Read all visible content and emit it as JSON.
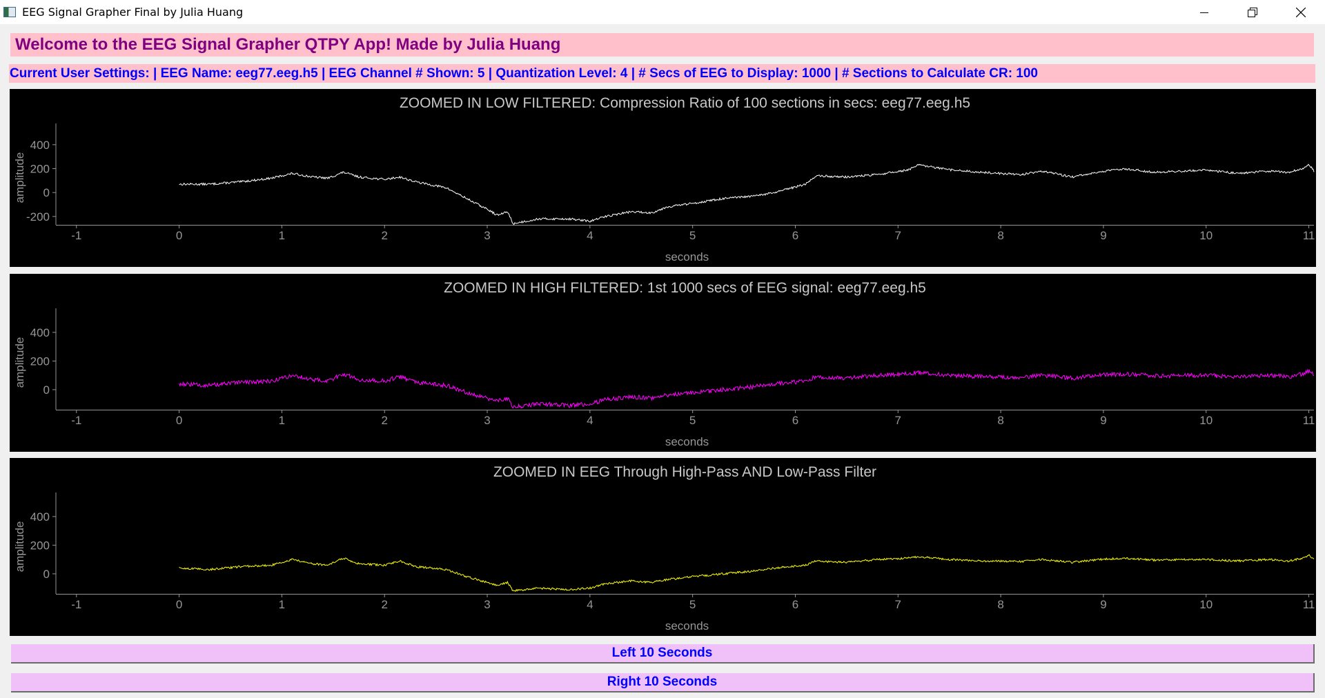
{
  "window": {
    "title": "EEG Signal Grapher Final by Julia Huang",
    "icons": [
      "app-icon",
      "minimize-icon",
      "restore-icon",
      "close-icon"
    ]
  },
  "header": {
    "welcome": "Welcome to the EEG Signal Grapher QTPY App! Made by Julia Huang",
    "settings": "Current User Settings: | EEG Name: eeg77.eeg.h5 | EEG Channel # Shown: 5 | Quantization Level: 4 | # Secs of EEG to Display: 1000 | # Sections to Calculate CR: 100"
  },
  "colors": {
    "welcome_bg": "#ffc0cb",
    "welcome_text": "#800080",
    "settings_text": "#0000ff",
    "plot_bg": "#000000",
    "button_bg": "#f0c0f8",
    "button_text": "#0000ff"
  },
  "buttons": {
    "left": "Left 10 Seconds",
    "right": "Right 10 Seconds"
  },
  "chart_data": [
    {
      "type": "line",
      "title": "ZOOMED IN LOW FILTERED: Compression Ratio of 100 sections in secs: eeg77.eeg.h5",
      "xlabel": "seconds",
      "ylabel": "amplitude",
      "xlim": [
        -1.2,
        11.05
      ],
      "ylim": [
        -270,
        520
      ],
      "xticks": [
        -1,
        0,
        1,
        2,
        3,
        4,
        5,
        6,
        7,
        8,
        9,
        10,
        11
      ],
      "yticks": [
        -200,
        0,
        200,
        400
      ],
      "color": "#ffffff",
      "noise": 9,
      "series": [
        {
          "x": [
            0,
            0.3,
            0.6,
            0.9,
            1.1,
            1.3,
            1.45,
            1.6,
            1.75,
            2.0,
            2.15,
            2.3,
            2.6,
            2.8,
            3.0,
            3.1,
            3.2,
            3.25,
            3.5,
            3.8,
            4.0,
            4.15,
            4.4,
            4.6,
            4.75,
            5.0,
            5.3,
            5.6,
            5.8,
            6.1,
            6.2,
            6.5,
            6.8,
            7.1,
            7.2,
            7.5,
            7.8,
            8.0,
            8.2,
            8.4,
            8.7,
            8.95,
            9.2,
            9.5,
            9.8,
            10.0,
            10.3,
            10.6,
            10.8,
            10.95,
            11.0,
            11.05
          ],
          "y": [
            70,
            70,
            90,
            120,
            160,
            130,
            120,
            170,
            130,
            110,
            130,
            90,
            40,
            -50,
            -140,
            -190,
            -160,
            -260,
            -220,
            -220,
            -240,
            -200,
            -160,
            -170,
            -120,
            -90,
            -50,
            -30,
            0,
            70,
            140,
            130,
            150,
            190,
            230,
            190,
            170,
            160,
            150,
            180,
            130,
            170,
            200,
            170,
            180,
            190,
            160,
            180,
            170,
            200,
            240,
            180
          ]
        }
      ]
    },
    {
      "type": "line",
      "title": "ZOOMED IN HIGH FILTERED: 1st 1000 secs of EEG signal: eeg77.eeg.h5",
      "xlabel": "seconds",
      "ylabel": "amplitude",
      "xlim": [
        -1.2,
        11.05
      ],
      "ylim": [
        -140,
        520
      ],
      "xticks": [
        -1,
        0,
        1,
        2,
        3,
        4,
        5,
        6,
        7,
        8,
        9,
        10,
        11
      ],
      "yticks": [
        0,
        200,
        400
      ],
      "color": "#ff00ff",
      "noise": 15,
      "series": [
        {
          "x": [
            0,
            0.3,
            0.6,
            0.9,
            1.1,
            1.3,
            1.45,
            1.6,
            1.75,
            2.0,
            2.15,
            2.3,
            2.6,
            2.8,
            3.0,
            3.1,
            3.2,
            3.25,
            3.5,
            3.8,
            4.0,
            4.15,
            4.4,
            4.6,
            4.75,
            5.0,
            5.3,
            5.6,
            5.8,
            6.1,
            6.2,
            6.5,
            6.8,
            7.1,
            7.2,
            7.5,
            7.8,
            8.0,
            8.2,
            8.4,
            8.7,
            8.95,
            9.2,
            9.5,
            9.8,
            10.0,
            10.3,
            10.6,
            10.8,
            10.95,
            11.0,
            11.05
          ],
          "y": [
            40,
            30,
            50,
            60,
            100,
            70,
            60,
            110,
            70,
            60,
            90,
            50,
            30,
            -20,
            -60,
            -80,
            -60,
            -120,
            -100,
            -110,
            -100,
            -70,
            -50,
            -60,
            -40,
            -20,
            0,
            20,
            40,
            60,
            90,
            80,
            100,
            110,
            120,
            100,
            90,
            90,
            85,
            100,
            80,
            100,
            110,
            95,
            100,
            100,
            90,
            100,
            90,
            110,
            130,
            100
          ]
        }
      ]
    },
    {
      "type": "line",
      "title": "ZOOMED IN EEG Through High-Pass AND Low-Pass Filter",
      "xlabel": "seconds",
      "ylabel": "amplitude",
      "xlim": [
        -1.2,
        11.05
      ],
      "ylim": [
        -140,
        520
      ],
      "xticks": [
        -1,
        0,
        1,
        2,
        3,
        4,
        5,
        6,
        7,
        8,
        9,
        10,
        11
      ],
      "yticks": [
        0,
        200,
        400
      ],
      "color": "#ffff00",
      "noise": 7,
      "series": [
        {
          "x": [
            0,
            0.3,
            0.6,
            0.9,
            1.1,
            1.3,
            1.45,
            1.6,
            1.75,
            2.0,
            2.15,
            2.3,
            2.6,
            2.8,
            3.0,
            3.1,
            3.2,
            3.25,
            3.5,
            3.8,
            4.0,
            4.15,
            4.4,
            4.6,
            4.75,
            5.0,
            5.3,
            5.6,
            5.8,
            6.1,
            6.2,
            6.5,
            6.8,
            7.1,
            7.2,
            7.5,
            7.8,
            8.0,
            8.2,
            8.4,
            8.7,
            8.95,
            9.2,
            9.5,
            9.8,
            10.0,
            10.3,
            10.6,
            10.8,
            10.95,
            11.0,
            11.05
          ],
          "y": [
            40,
            30,
            50,
            60,
            100,
            70,
            60,
            110,
            70,
            60,
            90,
            50,
            30,
            -20,
            -60,
            -80,
            -60,
            -120,
            -100,
            -110,
            -100,
            -70,
            -50,
            -60,
            -40,
            -20,
            0,
            20,
            40,
            60,
            90,
            80,
            100,
            110,
            120,
            100,
            90,
            90,
            85,
            100,
            80,
            100,
            110,
            95,
            100,
            100,
            90,
            100,
            90,
            110,
            130,
            100
          ]
        }
      ]
    }
  ]
}
